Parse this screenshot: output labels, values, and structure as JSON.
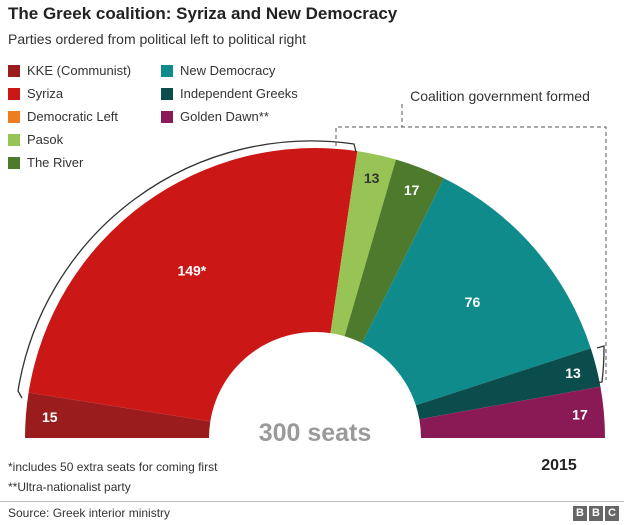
{
  "title": "The Greek coalition: Syriza and New Democracy",
  "subtitle": "Parties ordered from political left to political right",
  "legend": [
    {
      "label": "KKE (Communist)",
      "color": "#9b1c1c"
    },
    {
      "label": "Syriza",
      "color": "#cc1717"
    },
    {
      "label": "Democratic Left",
      "color": "#ee7d1f"
    },
    {
      "label": "Pasok",
      "color": "#98c455"
    },
    {
      "label": "The River",
      "color": "#4e7a2d"
    },
    {
      "label": "New Democracy",
      "color": "#0f8b8b"
    },
    {
      "label": "Independent Greeks",
      "color": "#0b4c4c"
    },
    {
      "label": "Golden Dawn**",
      "color": "#8a1a55"
    }
  ],
  "chart_data": {
    "type": "semicircle",
    "total_label": "300 seats",
    "year": "2015",
    "series": [
      {
        "name": "KKE (Communist)",
        "value": 15,
        "label": "15",
        "color": "#9b1c1c"
      },
      {
        "name": "Syriza",
        "value": 149,
        "label": "149*",
        "color": "#cc1717"
      },
      {
        "name": "Democratic Left",
        "value": 0,
        "label": "",
        "color": "#ee7d1f"
      },
      {
        "name": "Pasok",
        "value": 13,
        "label": "13",
        "color": "#98c455"
      },
      {
        "name": "The River",
        "value": 17,
        "label": "17",
        "color": "#4e7a2d"
      },
      {
        "name": "New Democracy",
        "value": 76,
        "label": "76",
        "color": "#0f8b8b"
      },
      {
        "name": "Independent Greeks",
        "value": 13,
        "label": "13",
        "color": "#0b4c4c"
      },
      {
        "name": "Golden Dawn**",
        "value": 17,
        "label": "17",
        "color": "#8a1a55"
      }
    ],
    "annotation": "Coalition government formed"
  },
  "notes": {
    "extra_seats": "*includes 50 extra seats for coming first",
    "ultra": "**Ultra-nationalist party"
  },
  "source": "Source: Greek interior ministry",
  "brand": [
    "B",
    "B",
    "C"
  ]
}
